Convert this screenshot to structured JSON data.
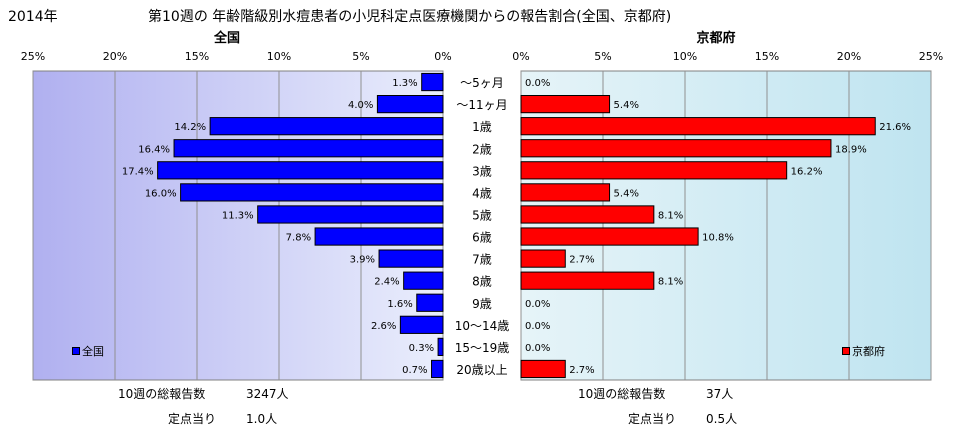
{
  "header": {
    "year": "2014年",
    "title": "第10週の 年齢階級別水痘患者の小児科定点医療機関からの報告割合(全国、京都府)"
  },
  "chart_data": [
    {
      "type": "bar",
      "orientation": "horizontal",
      "title": "全国",
      "x_reversed": true,
      "xlim": [
        0,
        25
      ],
      "xticks": [
        "0%",
        "5%",
        "10%",
        "15%",
        "20%",
        "25%"
      ],
      "categories": [
        "〜5ヶ月",
        "〜11ヶ月",
        "1歳",
        "2歳",
        "3歳",
        "4歳",
        "5歳",
        "6歳",
        "7歳",
        "8歳",
        "9歳",
        "10〜14歳",
        "15〜19歳",
        "20歳以上"
      ],
      "series": [
        {
          "name": "全国",
          "color": "#0000ff",
          "values": [
            1.3,
            4.0,
            14.2,
            16.4,
            17.4,
            16.0,
            11.3,
            7.8,
            3.9,
            2.4,
            1.6,
            2.6,
            0.3,
            0.7
          ],
          "labels": [
            "1.3%",
            "4.0%",
            "14.2%",
            "16.4%",
            "17.4%",
            "16.0%",
            "11.3%",
            "7.8%",
            "3.9%",
            "2.4%",
            "1.6%",
            "2.6%",
            "0.3%",
            "0.7%"
          ]
        }
      ],
      "grid": true,
      "legend": "bottom-left"
    },
    {
      "type": "bar",
      "orientation": "horizontal",
      "title": "京都府",
      "xlim": [
        0,
        25
      ],
      "xticks": [
        "0%",
        "5%",
        "10%",
        "15%",
        "20%",
        "25%"
      ],
      "categories": [
        "〜5ヶ月",
        "〜11ヶ月",
        "1歳",
        "2歳",
        "3歳",
        "4歳",
        "5歳",
        "6歳",
        "7歳",
        "8歳",
        "9歳",
        "10〜14歳",
        "15〜19歳",
        "20歳以上"
      ],
      "series": [
        {
          "name": "京都府",
          "color": "#ff0000",
          "values": [
            0.0,
            5.4,
            21.6,
            18.9,
            16.2,
            5.4,
            8.1,
            10.8,
            2.7,
            8.1,
            0.0,
            0.0,
            0.0,
            2.7
          ],
          "labels": [
            "0.0%",
            "5.4%",
            "21.6%",
            "18.9%",
            "16.2%",
            "5.4%",
            "8.1%",
            "10.8%",
            "2.7%",
            "8.1%",
            "0.0%",
            "0.0%",
            "0.0%",
            "2.7%"
          ]
        }
      ],
      "grid": true,
      "legend": "bottom-right"
    }
  ],
  "footer": {
    "national": {
      "total_label": "10週の総報告数",
      "total_value": "3247人",
      "per_label": "定点当り",
      "per_value": "1.0人"
    },
    "kyoto": {
      "total_label": "10週の総報告数",
      "total_value": "37人",
      "per_label": "定点当り",
      "per_value": "0.5人"
    }
  }
}
